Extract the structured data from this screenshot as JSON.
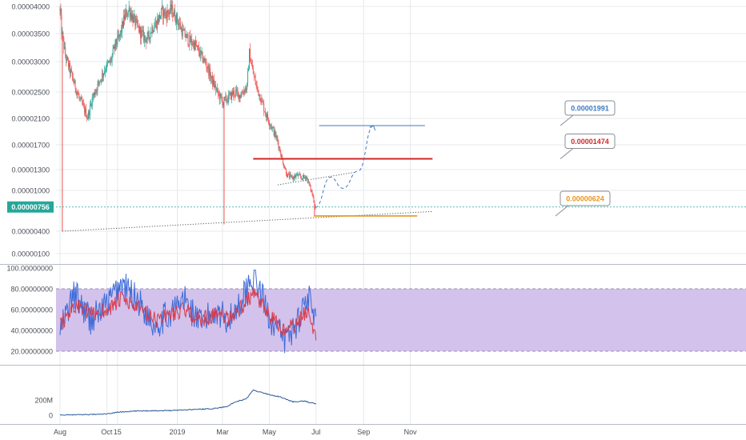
{
  "chart_data": [
    {
      "type": "candlestick",
      "price_axis_labels": [
        "0.00004000",
        "0.00003500",
        "0.00003000",
        "0.00002500",
        "0.00002100",
        "0.00001700",
        "0.00001300",
        "0.00001000",
        "0.00000400",
        "0.00000100"
      ],
      "price_axis_values": [
        4e-05,
        3.5e-05,
        3e-05,
        2.5e-05,
        2.1e-05,
        1.7e-05,
        1.3e-05,
        1e-05,
        4e-06,
        1e-06
      ],
      "current_price": "0.00000756",
      "current_price_value": 7.56e-06,
      "close_series": [
        [
          "2018-08-01",
          3.92e-05
        ],
        [
          "2018-08-03",
          3.55e-05
        ],
        [
          "2018-08-08",
          3.1e-05
        ],
        [
          "2018-08-14",
          2.85e-05
        ],
        [
          "2018-08-20",
          2.62e-05
        ],
        [
          "2018-08-26",
          2.4e-05
        ],
        [
          "2018-09-01",
          2.25e-05
        ],
        [
          "2018-09-06",
          2.12e-05
        ],
        [
          "2018-09-12",
          2.4e-05
        ],
        [
          "2018-09-18",
          2.58e-05
        ],
        [
          "2018-09-24",
          2.75e-05
        ],
        [
          "2018-09-30",
          2.92e-05
        ],
        [
          "2018-10-06",
          3e-05
        ],
        [
          "2018-10-12",
          3.3e-05
        ],
        [
          "2018-10-18",
          3.45e-05
        ],
        [
          "2018-10-24",
          3.8e-05
        ],
        [
          "2018-10-30",
          3.95e-05
        ],
        [
          "2018-11-05",
          3.75e-05
        ],
        [
          "2018-11-11",
          3.6e-05
        ],
        [
          "2018-11-17",
          3.45e-05
        ],
        [
          "2018-11-23",
          3.4e-05
        ],
        [
          "2018-11-29",
          3.6e-05
        ],
        [
          "2018-12-05",
          3.7e-05
        ],
        [
          "2018-12-12",
          3.9e-05
        ],
        [
          "2018-12-18",
          3.85e-05
        ],
        [
          "2018-12-24",
          3.95e-05
        ],
        [
          "2019-01-01",
          3.75e-05
        ],
        [
          "2019-01-08",
          3.52e-05
        ],
        [
          "2019-01-16",
          3.38e-05
        ],
        [
          "2019-01-24",
          3.3e-05
        ],
        [
          "2019-02-01",
          3.1e-05
        ],
        [
          "2019-02-08",
          2.95e-05
        ],
        [
          "2019-02-15",
          2.7e-05
        ],
        [
          "2019-02-22",
          2.5e-05
        ],
        [
          "2019-03-01",
          2.35e-05
        ],
        [
          "2019-03-08",
          2.4e-05
        ],
        [
          "2019-03-16",
          2.5e-05
        ],
        [
          "2019-03-24",
          2.45e-05
        ],
        [
          "2019-03-30",
          2.55e-05
        ],
        [
          "2019-04-02",
          2.58e-05
        ],
        [
          "2019-04-05",
          3.15e-05
        ],
        [
          "2019-04-09",
          2.85e-05
        ],
        [
          "2019-04-14",
          2.6e-05
        ],
        [
          "2019-04-20",
          2.4e-05
        ],
        [
          "2019-04-27",
          2.15e-05
        ],
        [
          "2019-05-05",
          1.95e-05
        ],
        [
          "2019-05-12",
          1.75e-05
        ],
        [
          "2019-05-18",
          1.45e-05
        ],
        [
          "2019-05-24",
          1.22e-05
        ],
        [
          "2019-05-31",
          1.18e-05
        ],
        [
          "2019-06-06",
          1.22e-05
        ],
        [
          "2019-06-12",
          1.18e-05
        ],
        [
          "2019-06-18",
          1.2e-05
        ],
        [
          "2019-06-22",
          1.08e-05
        ],
        [
          "2019-06-26",
          9.5e-06
        ],
        [
          "2019-06-30",
          7.5e-06
        ]
      ],
      "wicks_low": [
        [
          "2018-08-04",
          4e-06
        ],
        [
          "2019-03-03",
          5e-06
        ],
        [
          "2019-06-29",
          6.3e-06
        ]
      ],
      "projection_path": [
        [
          "2019-06-30",
          7.5e-06
        ],
        [
          "2019-07-20",
          1.19e-05
        ],
        [
          "2019-08-05",
          1.03e-05
        ],
        [
          "2019-08-25",
          1.28e-05
        ],
        [
          "2019-09-14",
          1.99e-05
        ]
      ],
      "levels": [
        {
          "label": "0.00001991",
          "value": 1.991e-05,
          "color": "#3d7bbf"
        },
        {
          "label": "0.00001474",
          "value": 1.474e-05,
          "color": "#d0282b"
        },
        {
          "label": "0.00000624",
          "value": 6.24e-06,
          "color": "#e8951f"
        }
      ],
      "trendlines": [
        {
          "from": [
            "2018-08-04",
            4e-06
          ],
          "to": [
            "2019-11-30",
            6.9e-06
          ],
          "style": "dotted"
        },
        {
          "from": [
            "2019-05-12",
            1.08e-05
          ],
          "to": [
            "2019-08-20",
            1.26e-05
          ],
          "style": "dotted"
        }
      ]
    },
    {
      "type": "line",
      "indicator": "RSI",
      "axis_labels": [
        "100.00000000",
        "80.00000000",
        "60.00000000",
        "40.00000000",
        "20.00000000"
      ],
      "axis_values": [
        100,
        80,
        60,
        40,
        20
      ],
      "band": [
        20,
        80
      ],
      "x": [
        "2018-08-01",
        "2018-08-20",
        "2018-09-10",
        "2018-10-01",
        "2018-10-20",
        "2018-11-10",
        "2018-12-01",
        "2018-12-20",
        "2019-01-10",
        "2019-02-01",
        "2019-02-20",
        "2019-03-10",
        "2019-03-30",
        "2019-04-10",
        "2019-04-30",
        "2019-05-20",
        "2019-06-05",
        "2019-06-20",
        "2019-07-01"
      ],
      "series": [
        {
          "color": "#3d6bd8",
          "values": [
            40,
            75,
            50,
            65,
            85,
            70,
            45,
            55,
            70,
            45,
            60,
            50,
            75,
            95,
            55,
            30,
            45,
            75,
            45
          ]
        },
        {
          "color": "#d93b4a",
          "values": [
            45,
            65,
            55,
            60,
            70,
            62,
            50,
            55,
            60,
            50,
            55,
            52,
            65,
            75,
            55,
            40,
            45,
            60,
            35
          ]
        }
      ]
    },
    {
      "type": "area",
      "indicator": "volume",
      "axis_labels": [
        "200M",
        "0"
      ],
      "axis_values": [
        200,
        0
      ],
      "unit": "M",
      "x": [
        "2018-08-01",
        "2018-09-01",
        "2018-10-01",
        "2018-10-15",
        "2018-11-15",
        "2018-12-15",
        "2019-01-15",
        "2019-02-15",
        "2019-03-05",
        "2019-03-20",
        "2019-04-01",
        "2019-04-10",
        "2019-05-01",
        "2019-05-15",
        "2019-06-01",
        "2019-06-15",
        "2019-07-01"
      ],
      "values": [
        0,
        8,
        15,
        40,
        58,
        60,
        72,
        85,
        110,
        180,
        215,
        330,
        270,
        240,
        175,
        185,
        150
      ]
    }
  ],
  "time_axis": [
    {
      "label": "Aug",
      "date": "2018-08-01"
    },
    {
      "label": "Oct",
      "date": "2018-10-01"
    },
    {
      "label": "15",
      "date": "2018-10-15"
    },
    {
      "label": "2019",
      "date": "2019-01-01"
    },
    {
      "label": "Mar",
      "date": "2019-03-01"
    },
    {
      "label": "May",
      "date": "2019-05-01"
    },
    {
      "label": "Jul",
      "date": "2019-07-01"
    },
    {
      "label": "Sep",
      "date": "2019-09-01"
    },
    {
      "label": "Nov",
      "date": "2019-11-01"
    }
  ],
  "colors": {
    "background": "#ffffff",
    "up": "#26a69a",
    "down": "#ef5350",
    "grid": "#e6e8ec",
    "rsi_band": "#d3c2ec"
  }
}
